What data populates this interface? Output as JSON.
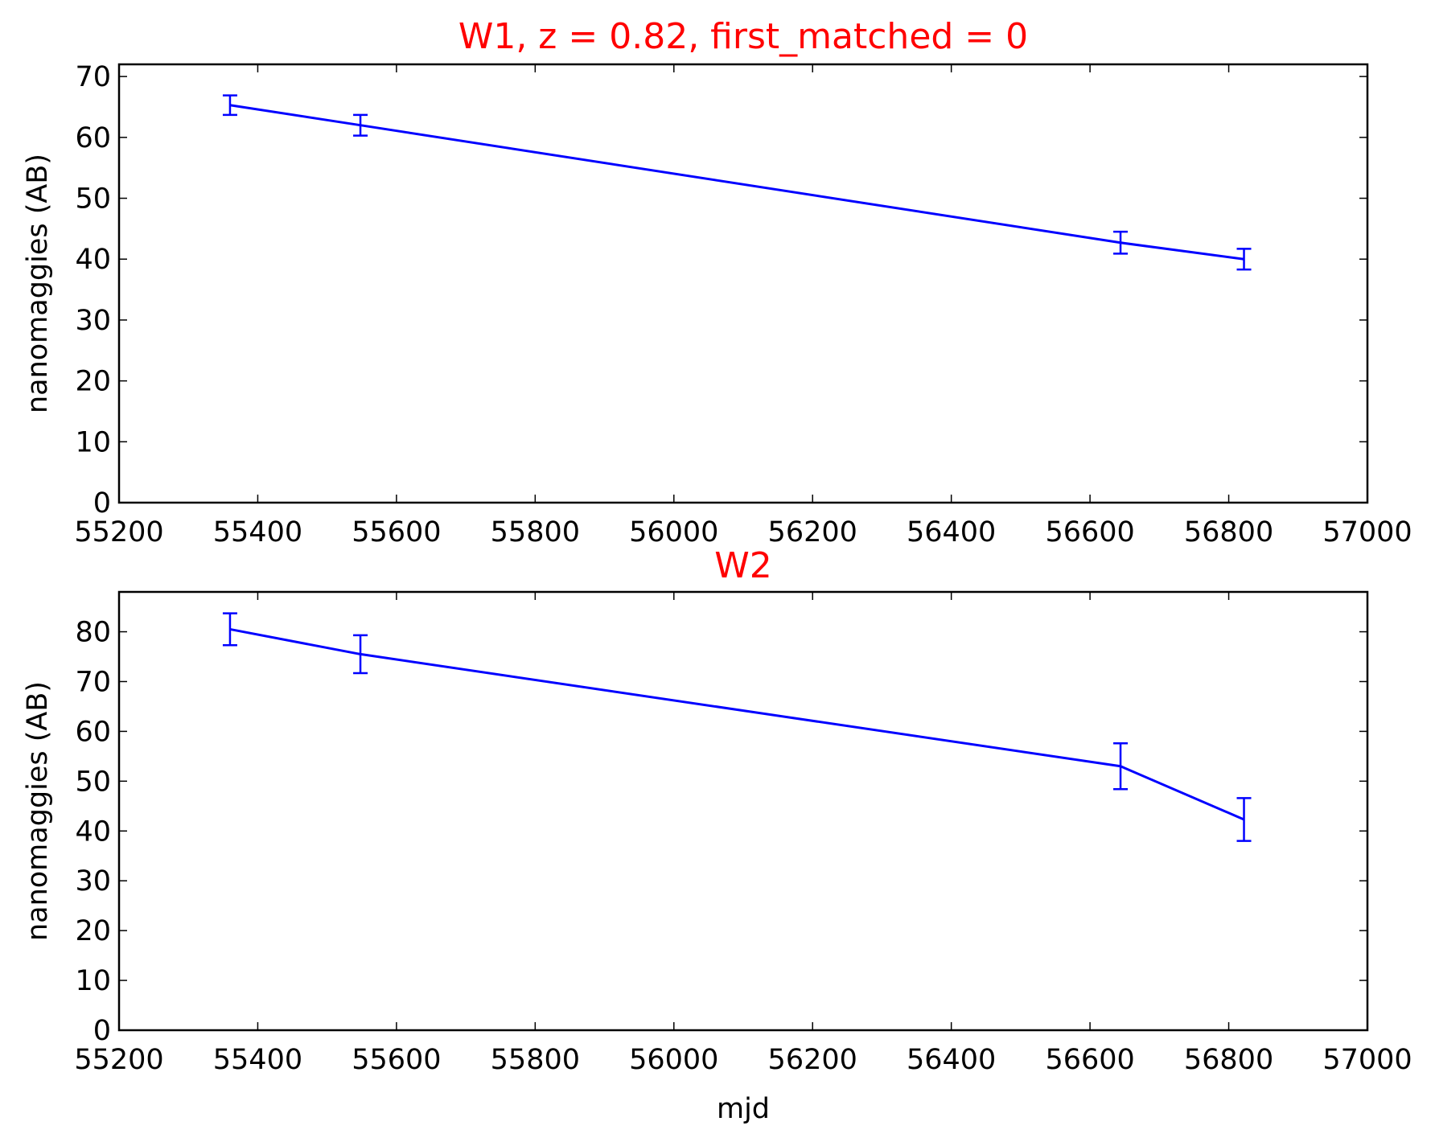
{
  "chart_data": [
    {
      "type": "line",
      "title": "W1, z = 0.82, first_matched = 0",
      "title_color": "#ff0000",
      "xlabel": "",
      "ylabel": "nanomaggies (AB)",
      "xlim": [
        55200,
        57000
      ],
      "ylim": [
        0,
        72
      ],
      "xticks": [
        55200,
        55400,
        55600,
        55800,
        56000,
        56200,
        56400,
        56600,
        56800,
        57000
      ],
      "yticks": [
        0,
        10,
        20,
        30,
        40,
        50,
        60,
        70
      ],
      "grid": false,
      "series": [
        {
          "color": "#0000ff",
          "x": [
            55360,
            55548,
            56644,
            56822
          ],
          "y": [
            65.3,
            62.0,
            42.7,
            40.0
          ],
          "yerr": [
            1.6,
            1.7,
            1.8,
            1.7
          ]
        }
      ]
    },
    {
      "type": "line",
      "title": "W2",
      "title_color": "#ff0000",
      "xlabel": "mjd",
      "ylabel": "nanomaggies (AB)",
      "xlim": [
        55200,
        57000
      ],
      "ylim": [
        0,
        88
      ],
      "xticks": [
        55200,
        55400,
        55600,
        55800,
        56000,
        56200,
        56400,
        56600,
        56800,
        57000
      ],
      "yticks": [
        0,
        10,
        20,
        30,
        40,
        50,
        60,
        70,
        80
      ],
      "grid": false,
      "series": [
        {
          "color": "#0000ff",
          "x": [
            55360,
            55548,
            56644,
            56822
          ],
          "y": [
            80.5,
            75.5,
            53.0,
            42.3
          ],
          "yerr": [
            3.2,
            3.8,
            4.6,
            4.3
          ]
        }
      ]
    }
  ]
}
